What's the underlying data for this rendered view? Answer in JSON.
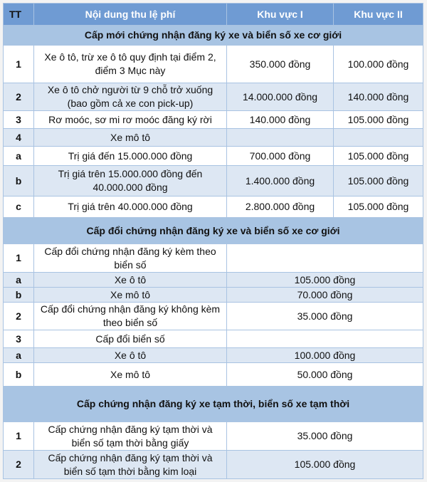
{
  "header": {
    "tt": "TT",
    "content": "Nội dung thu lệ phí",
    "kv1": "Khu vực I",
    "kv2": "Khu vực II"
  },
  "sections": [
    {
      "title": "Cấp mới chứng nhận đăng ký xe và biển số xe cơ giới",
      "rows": [
        {
          "tt": "1",
          "content": "Xe ô tô, trừ xe ô tô quy định tại điểm 2, điểm 3 Mục này",
          "kv1": "350.000 đồng",
          "kv2": "100.000 đồng"
        },
        {
          "tt": "2",
          "content": "Xe ô tô chở người từ 9 chỗ trở xuống (bao gồm cả xe con pick-up)",
          "kv1": "14.000.000 đồng",
          "kv2": "140.000 đồng"
        },
        {
          "tt": "3",
          "content": "Rơ moóc, sơ mi rơ moóc đăng ký rời",
          "kv1": "140.000 đồng",
          "kv2": "105.000 đồng"
        },
        {
          "tt": "4",
          "content": "Xe mô tô",
          "kv1": "",
          "kv2": ""
        },
        {
          "tt": "a",
          "content": "Trị giá đến 15.000.000 đồng",
          "kv1": "700.000 đồng",
          "kv2": "105.000 đồng"
        },
        {
          "tt": "b",
          "content": "Trị giá trên 15.000.000 đồng đến 40.000.000 đồng",
          "kv1": "1.400.000 đồng",
          "kv2": "105.000 đồng"
        },
        {
          "tt": "c",
          "content": "Trị giá trên 40.000.000 đồng",
          "kv1": "2.800.000 đồng",
          "kv2": "105.000 đồng"
        }
      ]
    },
    {
      "title": "Cấp đổi chứng nhận đăng ký xe và biển số xe cơ giới",
      "rows": [
        {
          "tt": "1",
          "content": "Cấp đổi chứng nhận đăng ký kèm theo biển số",
          "fee": ""
        },
        {
          "tt": "a",
          "content": "Xe ô tô",
          "fee": "105.000 đồng"
        },
        {
          "tt": "b",
          "content": "Xe mô tô",
          "fee": "70.000 đồng"
        },
        {
          "tt": "2",
          "content": "Cấp đổi chứng nhận đăng ký không kèm theo biển số",
          "fee": "35.000 đồng"
        },
        {
          "tt": "3",
          "content": "Cấp đổi biển số",
          "fee": ""
        },
        {
          "tt": "a",
          "content": "Xe ô tô",
          "fee": "100.000 đồng"
        },
        {
          "tt": "b",
          "content": "Xe mô tô",
          "fee": "50.000 đồng"
        }
      ]
    },
    {
      "title": "Cấp chứng nhận đăng ký xe tạm thời, biển số xe tạm thời",
      "rows": [
        {
          "tt": "1",
          "content": "Cấp chứng nhận đăng ký tạm thời và biển số tạm thời bằng giấy",
          "fee": "35.000 đồng"
        },
        {
          "tt": "2",
          "content": "Cấp chứng nhận đăng ký tạm thời và biển số tạm thời bằng kim loại",
          "fee": "105.000 đồng"
        }
      ]
    }
  ]
}
